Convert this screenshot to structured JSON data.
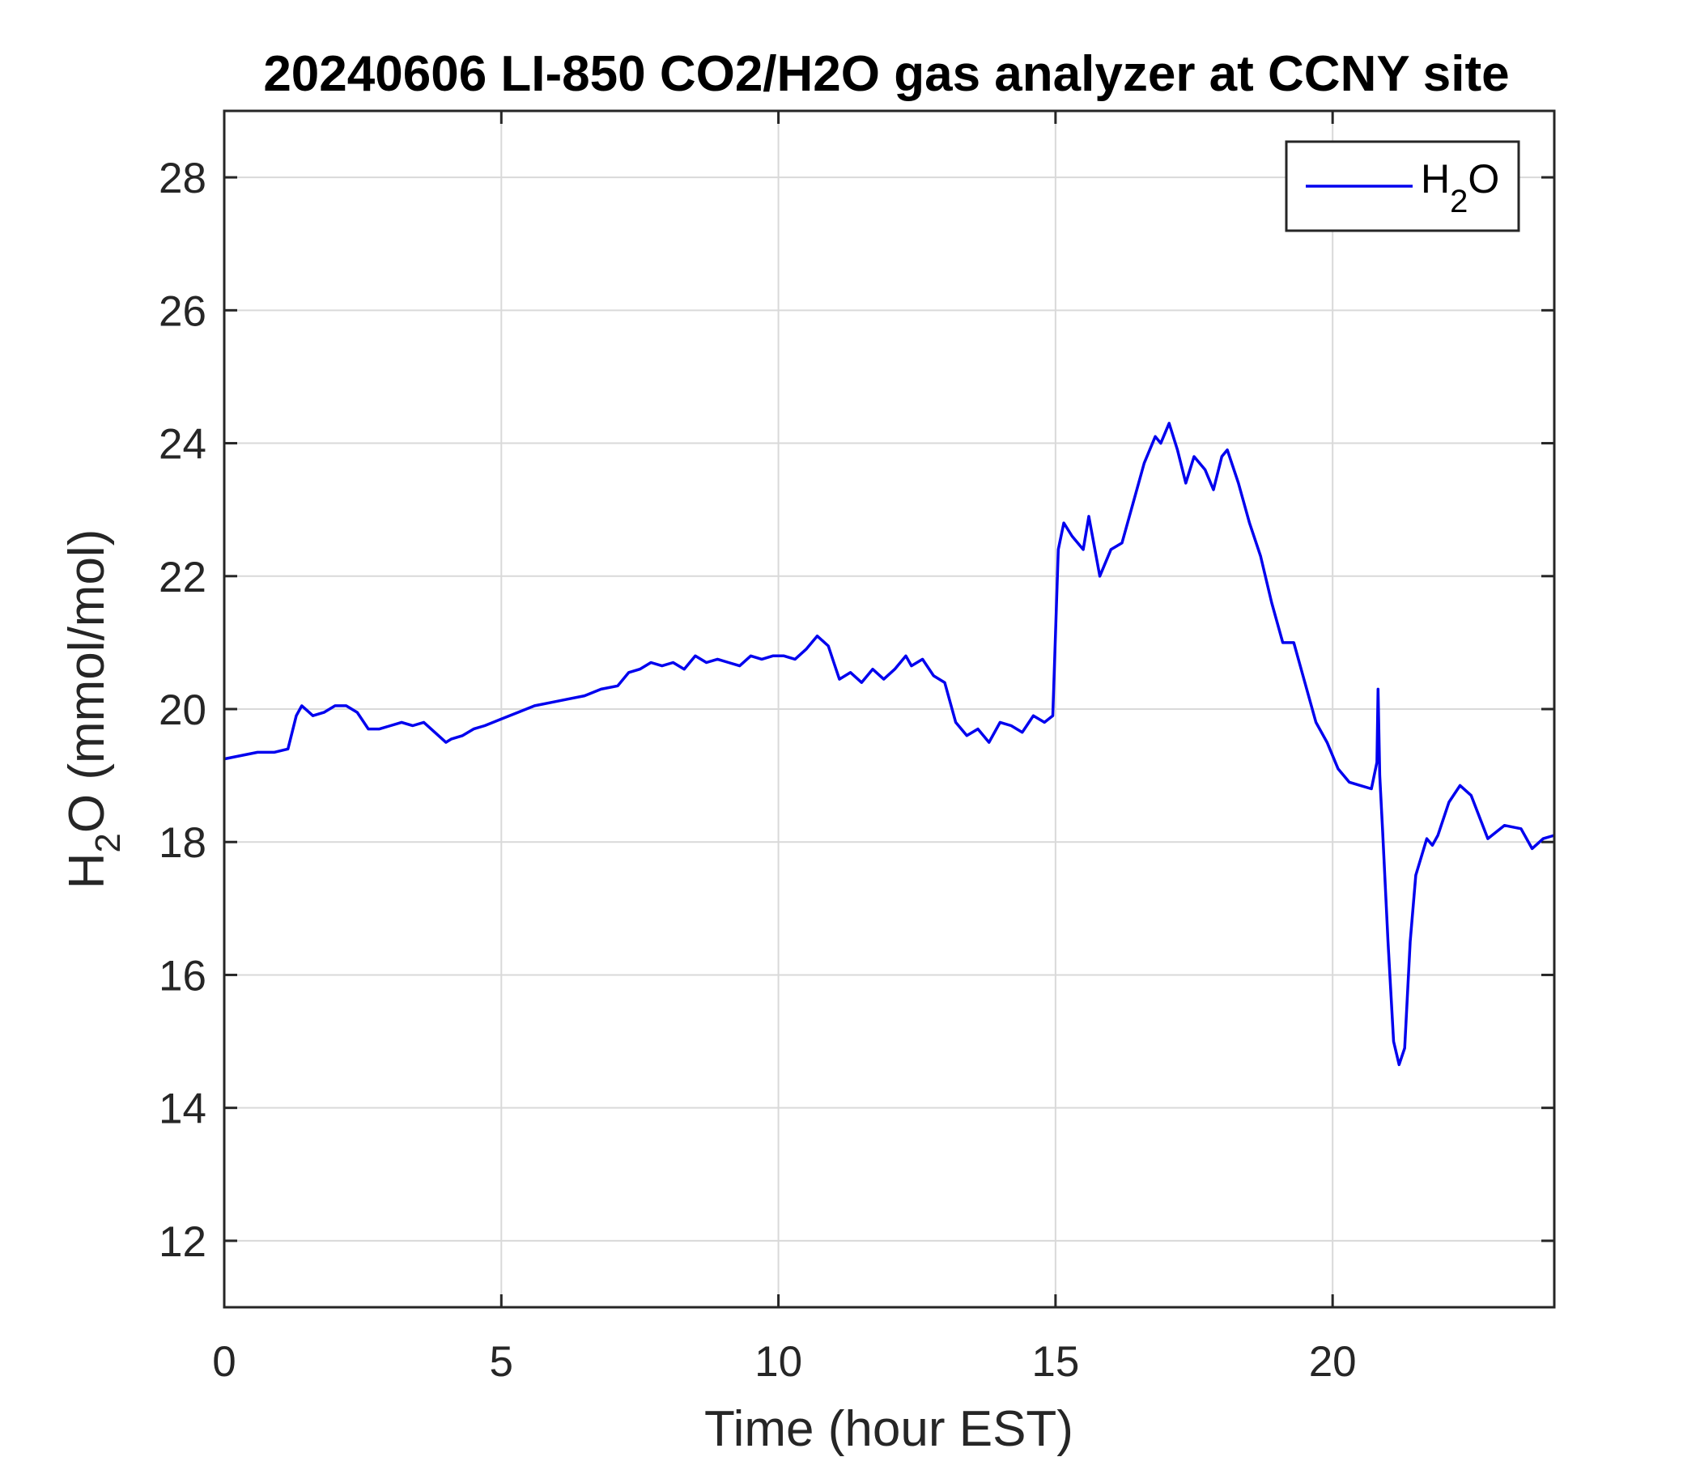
{
  "chart_data": {
    "type": "line",
    "title": "20240606 LI-850 CO2/H2O gas analyzer at CCNY site",
    "xlabel": "Time (hour EST)",
    "ylabel": {
      "main": "H",
      "sub": "2",
      "rest": "O (mmol/mol)"
    },
    "xlim": [
      0,
      24
    ],
    "ylim": [
      11,
      29
    ],
    "xticks": [
      0,
      5,
      10,
      15,
      20
    ],
    "yticks": [
      12,
      14,
      16,
      18,
      20,
      22,
      24,
      26,
      28
    ],
    "grid": true,
    "legend_position": "top-right",
    "colors": {
      "series": "#0000ee",
      "grid": "#d9d9d9",
      "axis": "#262626"
    },
    "series": [
      {
        "legend": {
          "main": "H",
          "sub": "2",
          "rest": "O"
        },
        "x": [
          0,
          0.3,
          0.6,
          0.9,
          1.15,
          1.3,
          1.4,
          1.6,
          1.8,
          2.0,
          2.2,
          2.4,
          2.6,
          2.8,
          3.0,
          3.2,
          3.4,
          3.6,
          3.8,
          4.0,
          4.1,
          4.3,
          4.5,
          4.7,
          5.0,
          5.3,
          5.6,
          5.9,
          6.2,
          6.5,
          6.8,
          7.1,
          7.3,
          7.5,
          7.7,
          7.9,
          8.1,
          8.3,
          8.5,
          8.7,
          8.9,
          9.1,
          9.3,
          9.5,
          9.7,
          9.9,
          10.1,
          10.3,
          10.5,
          10.7,
          10.9,
          11.0,
          11.1,
          11.3,
          11.5,
          11.7,
          11.9,
          12.1,
          12.3,
          12.4,
          12.6,
          12.8,
          13.0,
          13.2,
          13.4,
          13.6,
          13.8,
          14.0,
          14.2,
          14.4,
          14.6,
          14.8,
          14.95,
          15.05,
          15.15,
          15.3,
          15.5,
          15.6,
          15.8,
          16.0,
          16.2,
          16.4,
          16.6,
          16.8,
          16.9,
          17.05,
          17.2,
          17.35,
          17.5,
          17.7,
          17.85,
          18.0,
          18.1,
          18.3,
          18.5,
          18.7,
          18.9,
          19.1,
          19.3,
          19.5,
          19.7,
          19.9,
          20.1,
          20.3,
          20.5,
          20.7,
          20.8,
          20.82,
          20.85,
          20.9,
          21.0,
          21.1,
          21.2,
          21.3,
          21.4,
          21.5,
          21.7,
          21.8,
          21.9,
          22.1,
          22.3,
          22.5,
          22.8,
          23.1,
          23.4,
          23.6,
          23.8,
          24.0
        ],
        "values": [
          19.25,
          19.3,
          19.35,
          19.35,
          19.4,
          19.9,
          20.05,
          19.9,
          19.95,
          20.05,
          20.05,
          19.95,
          19.7,
          19.7,
          19.75,
          19.8,
          19.75,
          19.8,
          19.65,
          19.5,
          19.55,
          19.6,
          19.7,
          19.75,
          19.85,
          19.95,
          20.05,
          20.1,
          20.15,
          20.2,
          20.3,
          20.35,
          20.55,
          20.6,
          20.7,
          20.65,
          20.7,
          20.6,
          20.8,
          20.7,
          20.75,
          20.7,
          20.65,
          20.8,
          20.75,
          20.8,
          20.8,
          20.75,
          20.9,
          21.1,
          20.95,
          20.7,
          20.45,
          20.55,
          20.4,
          20.6,
          20.45,
          20.6,
          20.8,
          20.65,
          20.75,
          20.5,
          20.4,
          19.8,
          19.6,
          19.7,
          19.5,
          19.8,
          19.75,
          19.65,
          19.9,
          19.8,
          19.9,
          22.4,
          22.8,
          22.6,
          22.4,
          22.9,
          22.0,
          22.4,
          22.5,
          23.1,
          23.7,
          24.1,
          24.0,
          24.3,
          23.9,
          23.4,
          23.8,
          23.6,
          23.3,
          23.8,
          23.9,
          23.4,
          22.8,
          22.3,
          21.6,
          21.0,
          21.0,
          20.4,
          19.8,
          19.5,
          19.1,
          18.9,
          18.85,
          18.8,
          19.2,
          20.3,
          19.0,
          18.2,
          16.5,
          15.0,
          14.65,
          14.9,
          16.5,
          17.5,
          18.05,
          17.95,
          18.1,
          18.6,
          18.85,
          18.7,
          18.05,
          18.25,
          18.2,
          17.9,
          18.05,
          18.1
        ]
      }
    ]
  }
}
